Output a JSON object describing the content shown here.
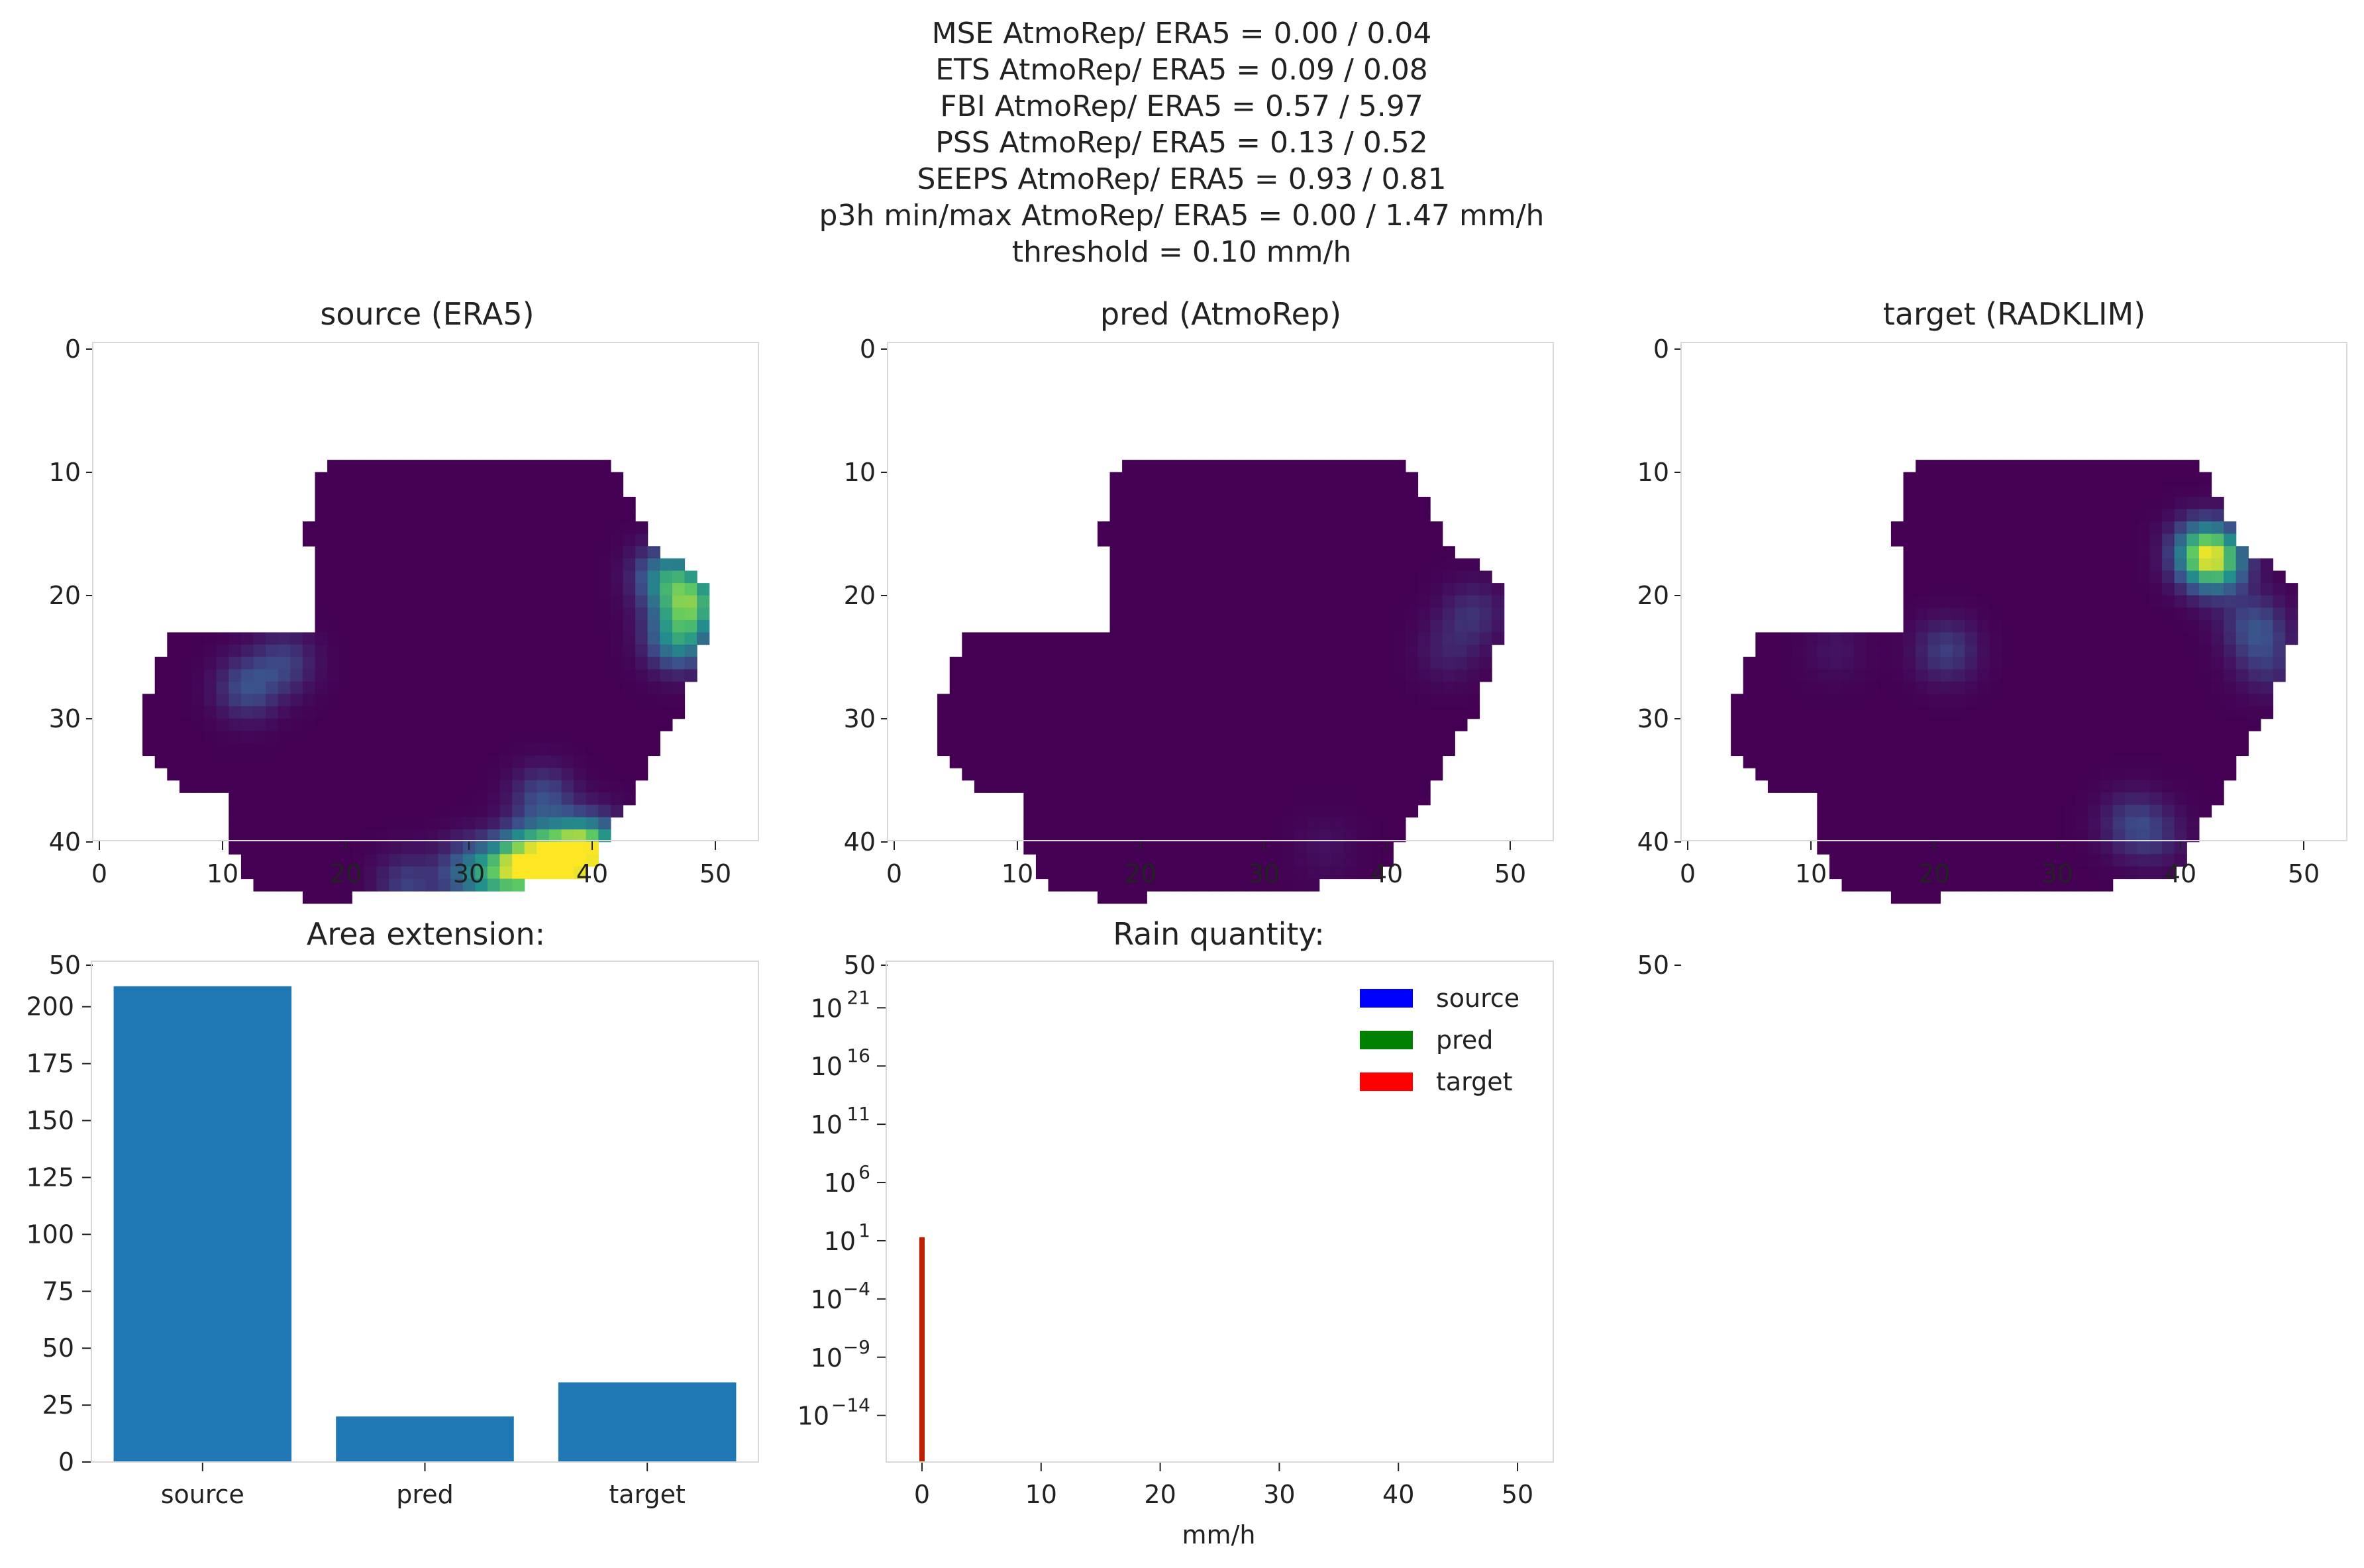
{
  "suptitle": [
    "MSE AtmoRep/ ERA5 = 0.00 / 0.04",
    "ETS AtmoRep/ ERA5 = 0.09 / 0.08",
    "FBI AtmoRep/ ERA5 = 0.57 / 5.97",
    "PSS AtmoRep/ ERA5 = 0.13 / 0.52",
    "SEEPS AtmoRep/ ERA5 = 0.93 / 0.81",
    "p3h min/max AtmoRep/ ERA5 = 0.00 / 1.47 mm/h",
    "threshold = 0.10 mm/h"
  ],
  "colors": {
    "viridis_low": "#440154",
    "bar": "#1f77b4",
    "source": "#0000ff",
    "pred": "#008000",
    "target": "#ff0000"
  },
  "chart_data": [
    {
      "type": "heatmap",
      "title": "source (ERA5)",
      "colormap": "viridis",
      "xlim": [
        -0.5,
        53.5
      ],
      "ylim": [
        53.5,
        -0.5
      ],
      "xticks": [
        "0",
        "10",
        "20",
        "30",
        "40",
        "50"
      ],
      "yticks": [
        "0",
        "10",
        "20",
        "30",
        "40",
        "50"
      ],
      "hotspots": [
        {
          "x": 48,
          "y": 20,
          "v": 0.65
        },
        {
          "x": 46,
          "y": 18,
          "v": 0.45
        },
        {
          "x": 47,
          "y": 23,
          "v": 0.5
        },
        {
          "x": 38,
          "y": 41,
          "v": 1.0
        },
        {
          "x": 35,
          "y": 41,
          "v": 0.75
        },
        {
          "x": 33,
          "y": 42,
          "v": 0.55
        },
        {
          "x": 40,
          "y": 40,
          "v": 0.6
        },
        {
          "x": 30,
          "y": 42,
          "v": 0.35
        },
        {
          "x": 25,
          "y": 43,
          "v": 0.2
        },
        {
          "x": 12,
          "y": 27,
          "v": 0.25
        },
        {
          "x": 15,
          "y": 25,
          "v": 0.2
        },
        {
          "x": 36,
          "y": 36,
          "v": 0.25
        }
      ]
    },
    {
      "type": "heatmap",
      "title": "pred (AtmoRep)",
      "colormap": "viridis",
      "xlim": [
        -0.5,
        53.5
      ],
      "ylim": [
        53.5,
        -0.5
      ],
      "xticks": [
        "0",
        "10",
        "20",
        "30",
        "40",
        "50"
      ],
      "yticks": [
        "0",
        "10",
        "20",
        "30",
        "40",
        "50"
      ],
      "hotspots": [
        {
          "x": 47,
          "y": 21,
          "v": 0.15
        },
        {
          "x": 45,
          "y": 24,
          "v": 0.1
        },
        {
          "x": 35,
          "y": 40,
          "v": 0.05
        }
      ]
    },
    {
      "type": "heatmap",
      "title": "target (RADKLIM)",
      "colormap": "viridis",
      "xlim": [
        -0.5,
        53.5
      ],
      "ylim": [
        53.5,
        -0.5
      ],
      "xticks": [
        "0",
        "10",
        "20",
        "30",
        "40",
        "50"
      ],
      "yticks": [
        "0",
        "10",
        "20",
        "30",
        "40",
        "50"
      ],
      "hotspots": [
        {
          "x": 42,
          "y": 16,
          "v": 0.7
        },
        {
          "x": 43,
          "y": 17,
          "v": 0.45
        },
        {
          "x": 46,
          "y": 22,
          "v": 0.25
        },
        {
          "x": 21,
          "y": 24,
          "v": 0.2
        },
        {
          "x": 36,
          "y": 38,
          "v": 0.18
        },
        {
          "x": 38,
          "y": 39,
          "v": 0.12
        },
        {
          "x": 47,
          "y": 25,
          "v": 0.15
        },
        {
          "x": 12,
          "y": 24,
          "v": 0.06
        }
      ]
    },
    {
      "type": "bar",
      "title": "Area extension:",
      "categories": [
        "source",
        "pred",
        "target"
      ],
      "values": [
        209,
        20,
        35
      ],
      "ylim": [
        0,
        220
      ],
      "yticks": [
        0,
        25,
        50,
        75,
        100,
        125,
        150,
        175,
        200
      ]
    },
    {
      "type": "bar",
      "title": "Rain quantity:",
      "xlabel": "mm/h",
      "yscale": "log",
      "xlim": [
        -3,
        53
      ],
      "ylim_exp": [
        -18,
        25
      ],
      "xticks": [
        0,
        10,
        20,
        30,
        40,
        50
      ],
      "yticks_exp": [
        "−14",
        "−9",
        "−4",
        "1",
        "6",
        "11",
        "16",
        "21"
      ],
      "ytick_base": "10",
      "legend": "top-right",
      "series": [
        {
          "name": "source",
          "x": 0,
          "value": 20
        },
        {
          "name": "pred",
          "x": 0,
          "value": 20
        },
        {
          "name": "target",
          "x": 0,
          "value": 20
        }
      ]
    }
  ]
}
